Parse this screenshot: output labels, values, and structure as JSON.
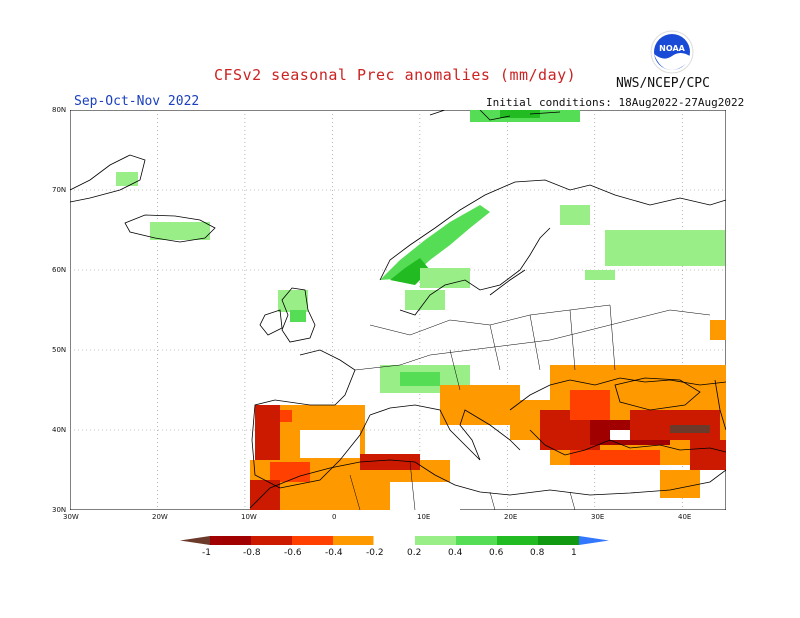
{
  "title": "CFSv2 seasonal Prec anomalies (mm/day)",
  "agency": "NWS/NCEP/CPC",
  "season": "Sep-Oct-Nov 2022",
  "initial_conditions": "Initial conditions: 18Aug2022-27Aug2022",
  "logo": {
    "icon": "noaa-logo-icon",
    "text": "NOAA"
  },
  "map": {
    "lat_labels": [
      "80N",
      "70N",
      "60N",
      "50N",
      "40N",
      "30N"
    ],
    "lon_labels": [
      "30W",
      "20W",
      "10W",
      "0",
      "10E",
      "20E",
      "30E",
      "40E"
    ],
    "grid": "dotted"
  },
  "colorbar": {
    "labels": [
      "-1",
      "-0.8",
      "-0.6",
      "-0.4",
      "-0.2",
      "0.2",
      "0.4",
      "0.6",
      "0.8",
      "1"
    ],
    "colors": [
      "#6b3a2a",
      "#a00000",
      "#cc1a00",
      "#ff4000",
      "#ff9900",
      "#ffffff",
      "#99ee88",
      "#55dd55",
      "#22bb22",
      "#119911",
      "#3377ff"
    ]
  }
}
